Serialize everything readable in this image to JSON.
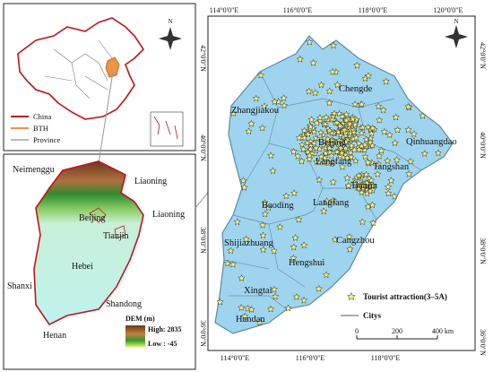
{
  "inset_map": {
    "north": "N",
    "legend": [
      "China",
      "BTH",
      "Province"
    ]
  },
  "dem_map": {
    "labels": [
      "Neimenggu",
      "Liaoning",
      "Liaoning",
      "Beijing",
      "Tianjin",
      "Hebei",
      "Shanxi",
      "Shandong",
      "Henan"
    ],
    "legend": {
      "title": "DEM (m)",
      "high": "High: 2835",
      "low": "Low : -45"
    }
  },
  "main_map": {
    "north": "N",
    "top_ticks": [
      "114°0'0\"E",
      "116°0'0\"E",
      "118°0'0\"E",
      "120°0'0\"E"
    ],
    "bottom_ticks": [
      "114°0'0\"E",
      "116°0'0\"E",
      "118°0'0\"E"
    ],
    "left_ticks": [
      "42°0'0\"N",
      "40°0'0\"N",
      "38°0'0\"N",
      "36°0'0\"N"
    ],
    "right_ticks": [
      "42°0'0\"N",
      "40°0'0\"N",
      "38°0'0\"N",
      "36°0'0\"N"
    ],
    "cities": [
      "Chengde",
      "Zhangjiakou",
      "Beijing",
      "Langfang",
      "Qinhuangdao",
      "Tangshan",
      "Tianjin",
      "Langfang",
      "Baoding",
      "Cangzhou",
      "Shijiazhuang",
      "Hengshui",
      "Xingtai",
      "Handan"
    ],
    "legend": {
      "attraction": "Tourist attraction(3–5A)",
      "cities": "Citys"
    },
    "scale": [
      "0",
      "200",
      "400 km"
    ]
  }
}
